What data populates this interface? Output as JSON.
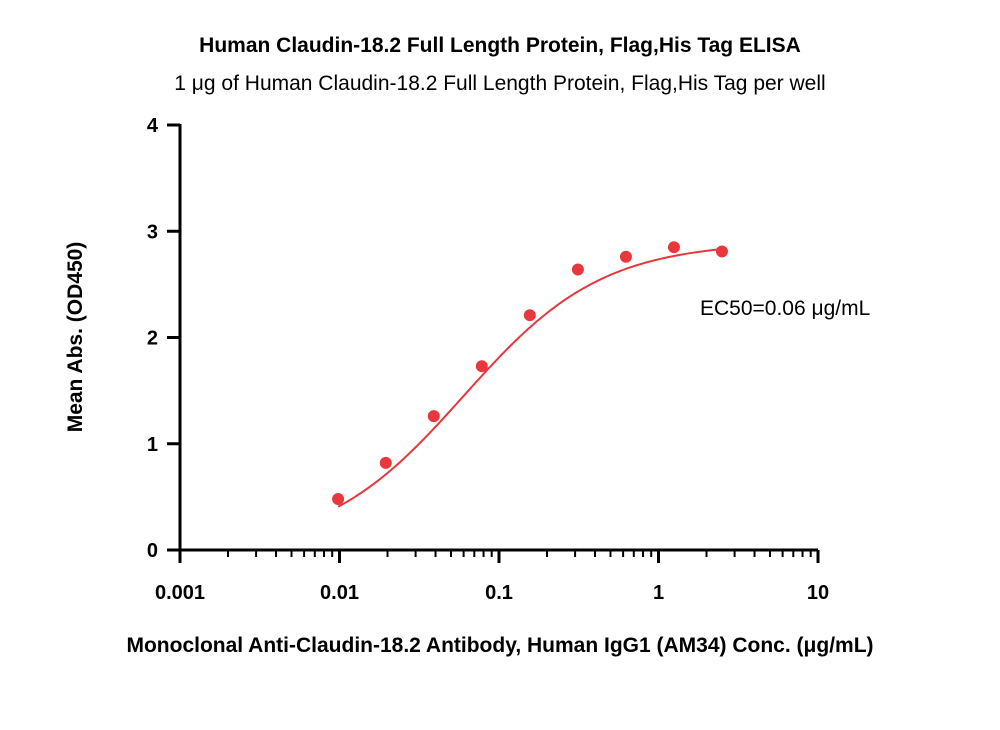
{
  "chart_data": {
    "type": "scatter",
    "title": "Human Claudin-18.2 Full Length Protein, Flag,His Tag ELISA",
    "subtitle": "1 μg of Human Claudin-18.2 Full Length Protein, Flag,His Tag per well",
    "xlabel": "Monoclonal Anti-Claudin-18.2 Antibody, Human IgG1 (AM34) Conc. (μg/mL)",
    "ylabel": "Mean Abs. (OD450)",
    "x_scale": "log",
    "xlim": [
      0.001,
      10
    ],
    "ylim": [
      0,
      4
    ],
    "x_ticks": [
      "0.001",
      "0.01",
      "0.1",
      "1",
      "10"
    ],
    "y_ticks": [
      "0",
      "1",
      "2",
      "3",
      "4"
    ],
    "grid": false,
    "annotation": "EC50=0.06 μg/mL",
    "series": [
      {
        "color": "#e8383d",
        "points": [
          {
            "x": 0.0098,
            "y": 0.48
          },
          {
            "x": 0.0195,
            "y": 0.82
          },
          {
            "x": 0.039,
            "y": 1.26
          },
          {
            "x": 0.078,
            "y": 1.73
          },
          {
            "x": 0.156,
            "y": 2.21
          },
          {
            "x": 0.3125,
            "y": 2.64
          },
          {
            "x": 0.625,
            "y": 2.76
          },
          {
            "x": 1.25,
            "y": 2.85
          },
          {
            "x": 2.5,
            "y": 2.81
          }
        ],
        "fit": {
          "bottom": 0.0,
          "top": 2.9,
          "ec50": 0.06,
          "hill": 1.0
        }
      }
    ]
  }
}
